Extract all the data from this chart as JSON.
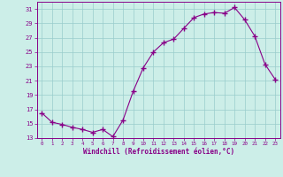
{
  "x": [
    0,
    1,
    2,
    3,
    4,
    5,
    6,
    7,
    8,
    9,
    10,
    11,
    12,
    13,
    14,
    15,
    16,
    17,
    18,
    19,
    20,
    21,
    22,
    23
  ],
  "y": [
    16.5,
    15.2,
    14.9,
    14.5,
    14.2,
    13.8,
    14.2,
    13.2,
    15.5,
    19.5,
    22.8,
    25.0,
    26.3,
    26.8,
    28.3,
    29.8,
    30.3,
    30.5,
    30.4,
    31.2,
    29.5,
    27.2,
    23.3,
    21.2
  ],
  "line_color": "#880088",
  "marker": "+",
  "marker_size": 4,
  "marker_lw": 1.0,
  "bg_color": "#cceee8",
  "grid_color": "#99cccc",
  "xlabel": "Windchill (Refroidissement éolien,°C)",
  "xlabel_color": "#880088",
  "tick_color": "#880088",
  "spine_color": "#880088",
  "ylim": [
    13,
    32
  ],
  "yticks": [
    13,
    15,
    17,
    19,
    21,
    23,
    25,
    27,
    29,
    31
  ],
  "xlim": [
    -0.5,
    23.5
  ],
  "xticks": [
    0,
    1,
    2,
    3,
    4,
    5,
    6,
    7,
    8,
    9,
    10,
    11,
    12,
    13,
    14,
    15,
    16,
    17,
    18,
    19,
    20,
    21,
    22,
    23
  ],
  "xtick_labels": [
    "0",
    "1",
    "2",
    "3",
    "4",
    "5",
    "6",
    "7",
    "8",
    "9",
    "10",
    "11",
    "12",
    "13",
    "14",
    "15",
    "16",
    "17",
    "18",
    "19",
    "20",
    "21",
    "22",
    "23"
  ]
}
